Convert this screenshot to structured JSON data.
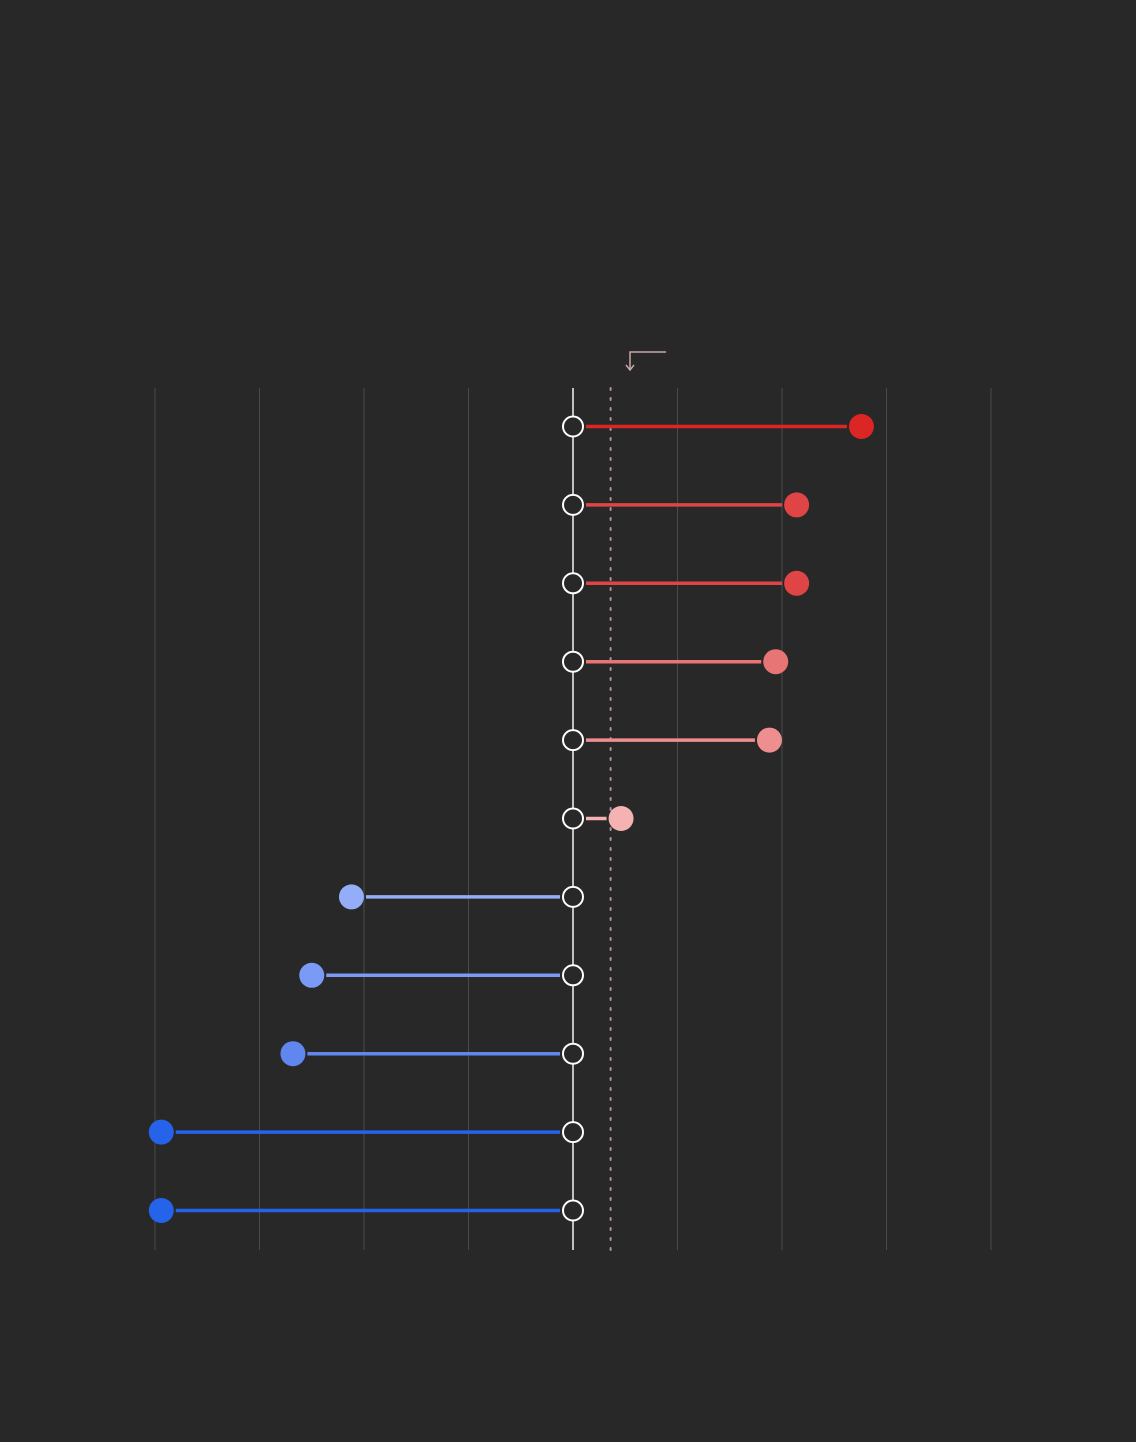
{
  "chart_data": {
    "type": "dumbbell",
    "title": "",
    "xlabel": "",
    "ylabel": "",
    "xlim": [
      -10,
      10
    ],
    "baseline": 0,
    "reference_line": 0.9,
    "grid": true,
    "tick_labels_visible": false,
    "legend": "none",
    "rows": [
      {
        "start": 0,
        "end": 6.9,
        "color": "#dc2626"
      },
      {
        "start": 0,
        "end": 5.35,
        "color": "#e04545"
      },
      {
        "start": 0,
        "end": 5.35,
        "color": "#e04545"
      },
      {
        "start": 0,
        "end": 4.85,
        "color": "#e87575"
      },
      {
        "start": 0,
        "end": 4.7,
        "color": "#ee8e8e"
      },
      {
        "start": 0,
        "end": 1.15,
        "color": "#f4b2b2"
      },
      {
        "start": 0,
        "end": -5.3,
        "color": "#93adf8"
      },
      {
        "start": 0,
        "end": -6.25,
        "color": "#7a9af5"
      },
      {
        "start": 0,
        "end": -6.7,
        "color": "#5f87ef"
      },
      {
        "start": 0,
        "end": -9.85,
        "color": "#2563eb"
      },
      {
        "start": 0,
        "end": -9.85,
        "color": "#2563eb"
      }
    ],
    "colors": {
      "background": "#282828",
      "grid": "#4a4a4a",
      "baseline": "#f2f2f2",
      "reference": "#c9a6a6",
      "marker_ring": "#ffffff"
    }
  }
}
